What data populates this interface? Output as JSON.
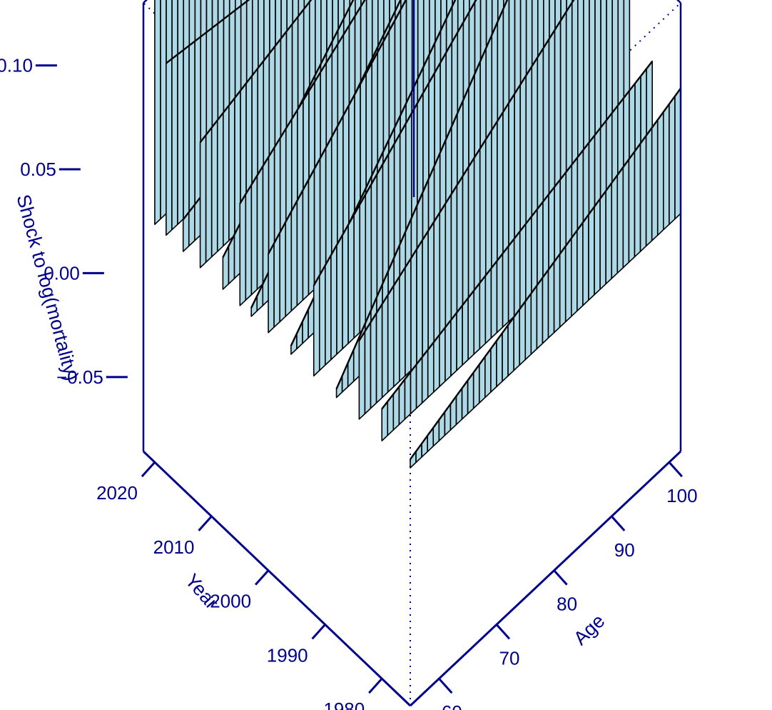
{
  "chart_data": {
    "type": "surface",
    "title": "",
    "x_axis": {
      "label": "Age",
      "ticks": [
        60,
        70,
        80,
        90,
        100
      ],
      "range": [
        55,
        102
      ]
    },
    "y_axis": {
      "label": "Year",
      "ticks": [
        1980,
        1990,
        2000,
        2010,
        2020
      ],
      "range": [
        1975,
        2022
      ]
    },
    "z_axis": {
      "label": "Shock to log(mortality)",
      "ticks": [
        -0.05,
        0.0,
        0.05,
        0.1
      ],
      "tick_labels": [
        "−0.05",
        "0.00",
        "0.05",
        "0.10"
      ],
      "range": [
        -0.07,
        0.115
      ]
    },
    "surface_color": "#add8e6",
    "line_color": "#000000",
    "axis_color": "#00008b",
    "shock_profiles": [
      {
        "year": 2020,
        "age_values": [
          [
            55,
            0.115
          ],
          [
            62,
            0.103
          ],
          [
            70,
            0.108
          ],
          [
            80,
            0.1
          ],
          [
            90,
            0.082
          ],
          [
            102,
            0.035
          ]
        ]
      },
      {
        "year": 2018,
        "age_values": [
          [
            55,
            0.0
          ],
          [
            102,
            -0.02
          ]
        ]
      },
      {
        "year": 2015,
        "age_values": [
          [
            55,
            -0.06
          ],
          [
            102,
            -0.02
          ]
        ]
      },
      {
        "year": 2012,
        "age_values": [
          [
            55,
            -0.02
          ],
          [
            102,
            0.02
          ]
        ]
      },
      {
        "year": 2008,
        "age_values": [
          [
            55,
            -0.06
          ],
          [
            102,
            0.06
          ]
        ]
      },
      {
        "year": 2005,
        "age_values": [
          [
            55,
            -0.03
          ],
          [
            102,
            0.05
          ]
        ]
      },
      {
        "year": 2003,
        "age_values": [
          [
            55,
            -0.07
          ],
          [
            102,
            0.06
          ]
        ]
      },
      {
        "year": 2000,
        "age_values": [
          [
            55,
            -0.04
          ],
          [
            102,
            0.065
          ]
        ]
      },
      {
        "year": 1996,
        "age_values": [
          [
            55,
            -0.07
          ],
          [
            102,
            0.065
          ]
        ]
      },
      {
        "year": 1992,
        "age_values": [
          [
            55,
            -0.035
          ],
          [
            102,
            0.06
          ]
        ]
      },
      {
        "year": 1988,
        "age_values": [
          [
            55,
            -0.07
          ],
          [
            102,
            0.085
          ]
        ]
      },
      {
        "year": 1984,
        "age_values": [
          [
            55,
            -0.04
          ],
          [
            102,
            0.035
          ]
        ]
      },
      {
        "year": 1980,
        "age_values": [
          [
            55,
            -0.06
          ],
          [
            102,
            -0.02
          ]
        ]
      },
      {
        "year": 1975,
        "age_values": [
          [
            55,
            -0.07
          ],
          [
            102,
            -0.02
          ]
        ]
      }
    ]
  }
}
